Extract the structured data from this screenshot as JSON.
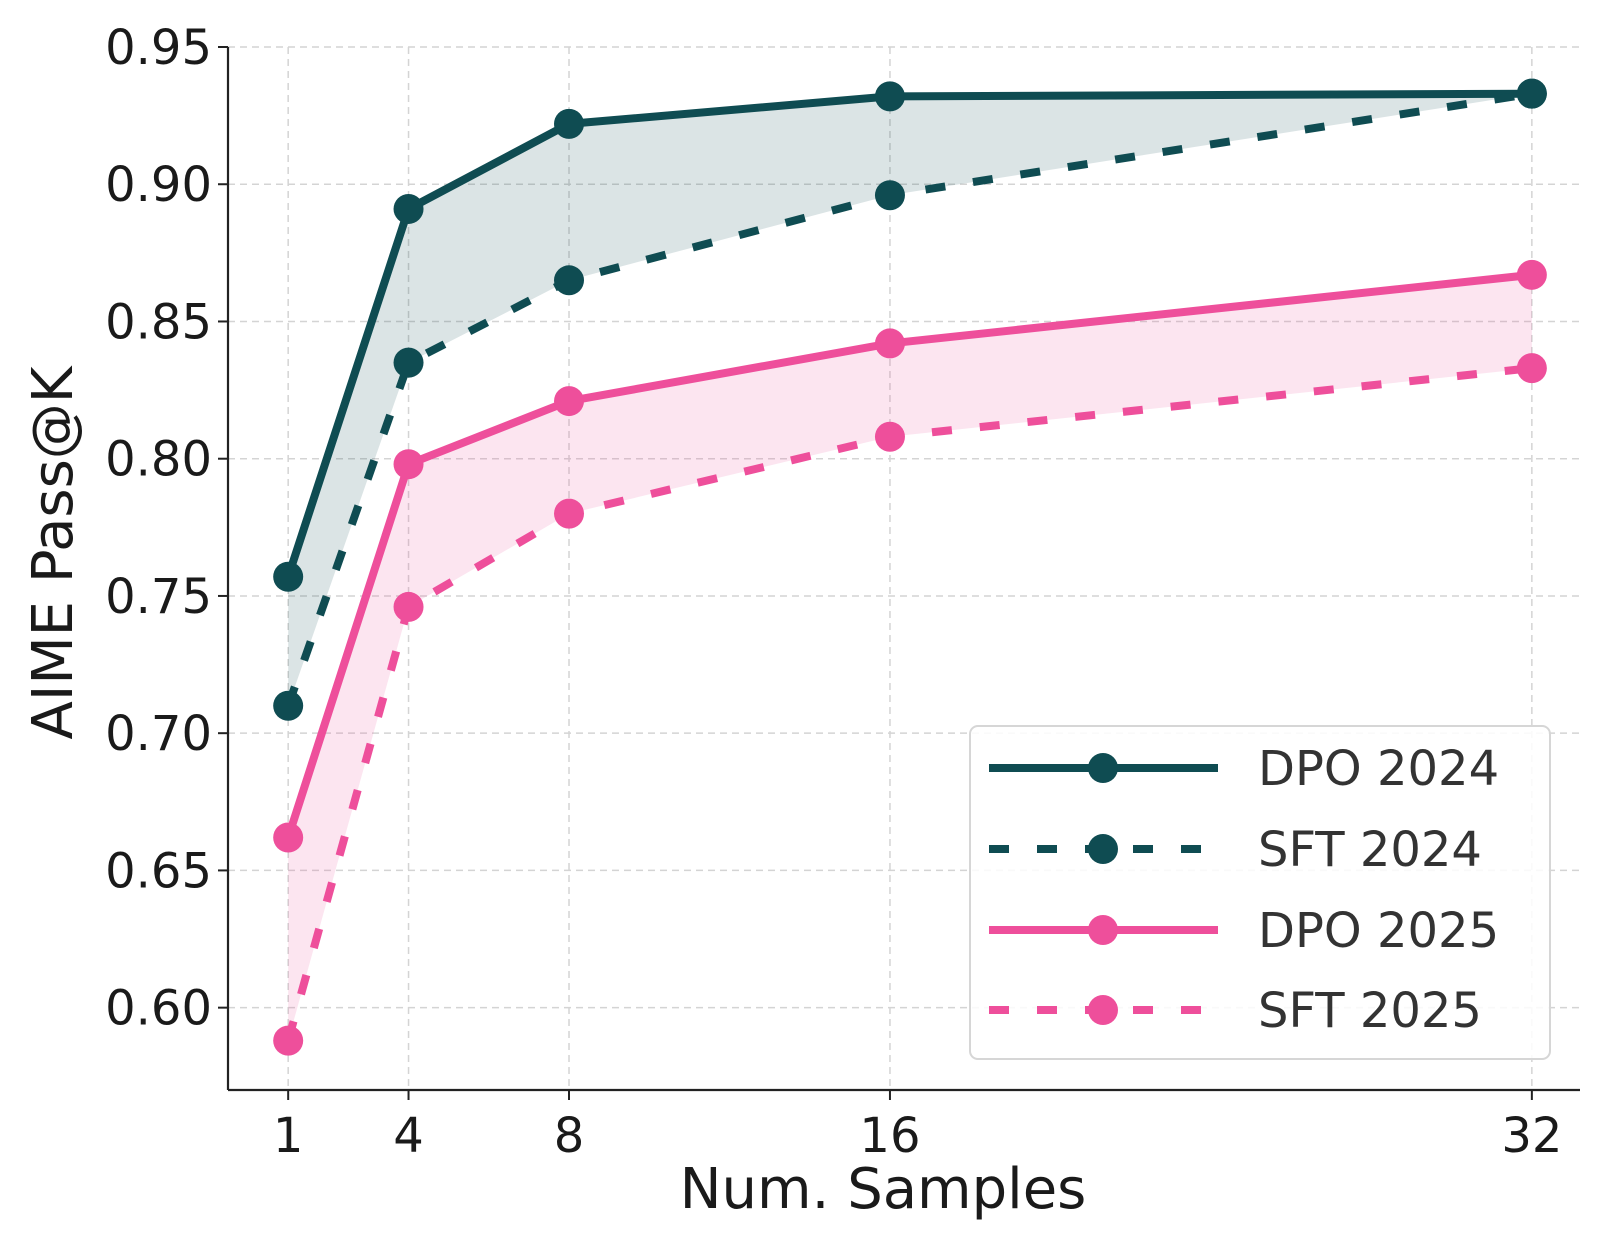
{
  "chart_data": {
    "type": "line",
    "title": "",
    "xlabel": "Num. Samples",
    "ylabel": "AIME Pass@K",
    "x": [
      1,
      4,
      8,
      16,
      32
    ],
    "x_tick_labels": [
      "1",
      "4",
      "8",
      "16",
      "32"
    ],
    "y_ticks": [
      0.6,
      0.65,
      0.7,
      0.75,
      0.8,
      0.85,
      0.9,
      0.95
    ],
    "y_tick_labels": [
      "0.60",
      "0.65",
      "0.70",
      "0.75",
      "0.80",
      "0.85",
      "0.90",
      "0.95"
    ],
    "xlim": [
      -0.5,
      33.2
    ],
    "ylim": [
      0.57,
      0.95
    ],
    "grid": true,
    "legend_position": "bottom-right",
    "series": [
      {
        "name": "DPO 2024",
        "values": [
          0.757,
          0.891,
          0.922,
          0.932,
          0.933
        ],
        "color": "#0f4c52",
        "linestyle": "solid",
        "marker": "circle"
      },
      {
        "name": "SFT 2024",
        "values": [
          0.71,
          0.835,
          0.865,
          0.896,
          0.933
        ],
        "color": "#0f4c52",
        "linestyle": "dashed",
        "marker": "circle"
      },
      {
        "name": "DPO 2025",
        "values": [
          0.662,
          0.798,
          0.821,
          0.842,
          0.867
        ],
        "color": "#ee4f9b",
        "linestyle": "solid",
        "marker": "circle"
      },
      {
        "name": "SFT 2025",
        "values": [
          0.588,
          0.746,
          0.78,
          0.808,
          0.833
        ],
        "color": "#ee4f9b",
        "linestyle": "dashed",
        "marker": "circle"
      }
    ],
    "shaded_regions": [
      {
        "between": [
          "DPO 2024",
          "SFT 2024"
        ],
        "color": "#0f4c52",
        "opacity": 0.15
      },
      {
        "between": [
          "DPO 2025",
          "SFT 2025"
        ],
        "color": "#ee4f9b",
        "opacity": 0.15
      }
    ]
  }
}
